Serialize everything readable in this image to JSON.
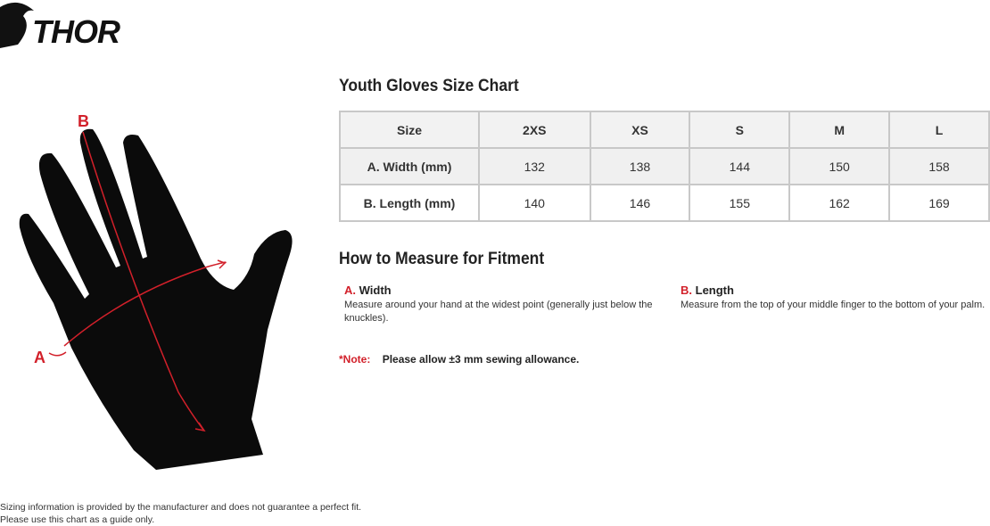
{
  "brand": {
    "logo_text": "THOR"
  },
  "chart_title": "Youth Gloves Size Chart",
  "table": {
    "headers": [
      "Size",
      "2XS",
      "XS",
      "S",
      "M",
      "L"
    ],
    "rows": [
      {
        "label": "A. Width (mm)",
        "values": [
          "132",
          "138",
          "144",
          "150",
          "158"
        ]
      },
      {
        "label": "B. Length (mm)",
        "values": [
          "140",
          "146",
          "155",
          "162",
          "169"
        ]
      }
    ]
  },
  "diagram": {
    "label_a": "A",
    "label_b": "B",
    "accent": "#d2202a"
  },
  "measure": {
    "title": "How to Measure for Fitment",
    "width": {
      "prefix": "A.",
      "label": "Width",
      "text": "Measure around your hand at the widest point (generally just below the knuckles)."
    },
    "length": {
      "prefix": "B.",
      "label": "Length",
      "text": "Measure from the top of your middle finger to the bottom of your palm."
    }
  },
  "note": {
    "label": "*Note:",
    "text": "Please allow ±3 mm sewing allowance."
  },
  "footer": {
    "line1": "Sizing information is provided by the manufacturer and does not guarantee a perfect fit.",
    "line2": "Please use this chart as a guide only."
  }
}
